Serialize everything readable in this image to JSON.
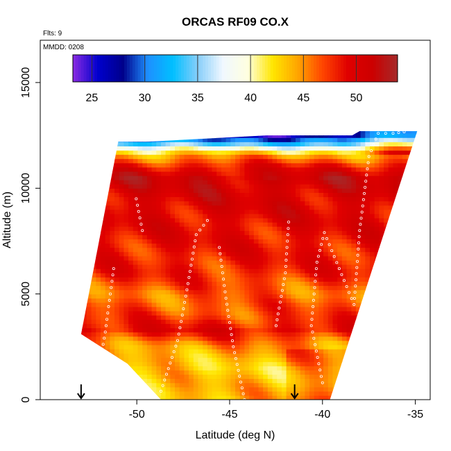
{
  "chart_data": {
    "type": "heatmap",
    "title": "ORCAS RF09 CO.X",
    "annotations": {
      "flights": "Flts: 9",
      "date": "MMDD: 0208"
    },
    "xlabel": "Latitude (deg N)",
    "ylabel": "Altitude (m)",
    "xlim": [
      -55.2,
      -34.2
    ],
    "ylim": [
      0,
      17000
    ],
    "x_ticks": [
      -50,
      -45,
      -40,
      -35
    ],
    "x_tick_labels": [
      "-50",
      "-45",
      "-40",
      "-35"
    ],
    "y_ticks": [
      0,
      5000,
      10000,
      15000
    ],
    "y_tick_labels": [
      "0",
      "5000",
      "10000",
      "15000"
    ],
    "colorbar": {
      "range": [
        23.2,
        53.9
      ],
      "ticks": [
        25,
        30,
        35,
        40,
        45,
        50
      ],
      "tick_labels": [
        "25",
        "30",
        "35",
        "40",
        "45",
        "50"
      ],
      "colors": [
        "#8a2be2",
        "#0000cd",
        "#00008b",
        "#1e90ff",
        "#00bfff",
        "#87cefa",
        "#f0f8ff",
        "#ffffe0",
        "#ffe600",
        "#ffa500",
        "#ff4500",
        "#e00000",
        "#cc0000",
        "#a52a2a"
      ]
    },
    "grid": false,
    "legend": "none",
    "domain": {
      "top": [
        [
          -51.0,
          12200
        ],
        [
          -49.5,
          12200
        ],
        [
          -43.0,
          12500
        ],
        [
          -38.4,
          12500
        ],
        [
          -38.0,
          12700
        ],
        [
          -34.9,
          12700
        ]
      ],
      "bottom": [
        [
          -53.0,
          3100
        ],
        [
          -50.5,
          1700
        ],
        [
          -48.7,
          0
        ],
        [
          -39.6,
          0
        ]
      ],
      "corner_right": [
        [
          -34.9,
          12700
        ],
        [
          -37.9,
          4600
        ],
        [
          -39.6,
          0
        ]
      ]
    },
    "value_profile": {
      "altitude": [
        0,
        1500,
        2600,
        3300,
        4000,
        5000,
        6000,
        8000,
        9500,
        10500,
        11000,
        11500,
        11800,
        12100,
        12500
      ],
      "co_ppb": [
        44,
        43,
        45,
        49,
        47,
        46,
        48,
        49,
        50,
        51,
        49,
        45,
        41,
        34,
        26
      ]
    },
    "flight_track": [
      {
        "lat": -52.3,
        "alt": 0
      },
      {
        "lat": -51.7,
        "alt": 3200
      },
      {
        "lat": -51.2,
        "alt": 6500
      },
      {
        "lat": -51.0,
        "alt": 12200
      },
      {
        "lat": -49.0,
        "alt": 0
      },
      {
        "lat": -49.3,
        "alt": 4000
      },
      {
        "lat": -49.7,
        "alt": 8000
      },
      {
        "lat": -50.1,
        "alt": 9800
      },
      {
        "lat": -48.7,
        "alt": 400
      },
      {
        "lat": -47.8,
        "alt": 2800
      },
      {
        "lat": -47.3,
        "alt": 5200
      },
      {
        "lat": -46.8,
        "alt": 7800
      },
      {
        "lat": -46.0,
        "alt": 8700
      },
      {
        "lat": -44.2,
        "alt": 0
      },
      {
        "lat": -44.8,
        "alt": 2500
      },
      {
        "lat": -45.2,
        "alt": 4800
      },
      {
        "lat": -45.6,
        "alt": 7500
      },
      {
        "lat": -42.5,
        "alt": 3500
      },
      {
        "lat": -42.0,
        "alt": 6000
      },
      {
        "lat": -41.8,
        "alt": 8700
      },
      {
        "lat": -40.0,
        "alt": 800
      },
      {
        "lat": -40.6,
        "alt": 3500
      },
      {
        "lat": -40.3,
        "alt": 6500
      },
      {
        "lat": -39.9,
        "alt": 7900
      },
      {
        "lat": -38.3,
        "alt": 4500
      },
      {
        "lat": -38.0,
        "alt": 8000
      },
      {
        "lat": -37.5,
        "alt": 11500
      },
      {
        "lat": -37.0,
        "alt": 12600
      },
      {
        "lat": -36.2,
        "alt": 12600
      },
      {
        "lat": -35.3,
        "alt": 12700
      }
    ],
    "arrows": [
      {
        "lat": -53.0,
        "alt": 400
      },
      {
        "lat": -41.5,
        "alt": 400
      }
    ]
  }
}
